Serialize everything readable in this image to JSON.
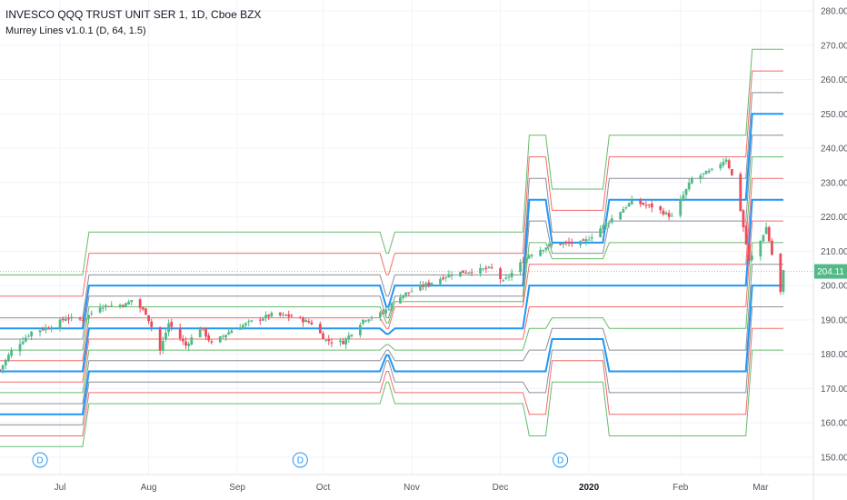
{
  "header": {
    "title": "INVESCO QQQ TRUST UNIT SER 1, 1D, Cboe BZX",
    "indicator": "Murrey Lines v1.0.1 (D, 64, 1.5)"
  },
  "colors": {
    "background": "#ffffff",
    "grid": "#f0f3fa",
    "axis_text": "#50535e",
    "candle_up": "#53b987",
    "candle_down": "#eb4d5c",
    "line_blue": "#2196f3",
    "line_red": "#ef5350",
    "line_green": "#4caf50",
    "line_gray": "#787b86",
    "price_tag": "#53b987"
  },
  "chart_data": {
    "type": "candlestick",
    "y_axis": {
      "min": 145,
      "max": 283,
      "position": "right",
      "ticks": [
        280,
        270,
        260,
        250,
        240,
        230,
        220,
        210,
        200,
        190,
        180,
        170,
        160,
        150
      ],
      "tick_labels": [
        "280.00",
        "270.00",
        "260.00",
        "250.00",
        "240.00",
        "230.00",
        "220.00",
        "210.00",
        "200.00",
        "190.00",
        "180.00",
        "170.00",
        "160.00",
        "150.00"
      ]
    },
    "x_axis": {
      "labels": [
        {
          "text": "Jul",
          "date": "2019-07-01"
        },
        {
          "text": "Aug",
          "date": "2019-08-01"
        },
        {
          "text": "Sep",
          "date": "2019-09-01"
        },
        {
          "text": "Oct",
          "date": "2019-10-01"
        },
        {
          "text": "Nov",
          "date": "2019-11-01"
        },
        {
          "text": "Dec",
          "date": "2019-12-02"
        },
        {
          "text": "2020",
          "date": "2020-01-02",
          "bold": true
        },
        {
          "text": "Feb",
          "date": "2020-02-03"
        },
        {
          "text": "Mar",
          "date": "2020-03-02"
        }
      ]
    },
    "last_price": {
      "value": 204.11,
      "label": "204.11"
    },
    "dividend_markers": [
      {
        "label": "D",
        "date": "2019-06-24"
      },
      {
        "label": "D",
        "date": "2019-09-23"
      },
      {
        "label": "D",
        "date": "2019-12-23"
      }
    ],
    "murrey_lines": {
      "periods": [
        {
          "start": "2019-06-10",
          "end": "2019-07-10",
          "levels": [
            203.1,
            196.9,
            190.6,
            187.5,
            184.4,
            181.2,
            178.1,
            175.0,
            171.9,
            168.8,
            165.6,
            162.5,
            159.4,
            156.2,
            153.1
          ]
        },
        {
          "start": "2019-07-10",
          "end": "2019-10-22",
          "levels": [
            215.6,
            209.4,
            203.1,
            200.0,
            196.9,
            193.8,
            190.6,
            187.5,
            184.4,
            181.2,
            178.1,
            175.0,
            171.9,
            168.8,
            165.6
          ]
        },
        {
          "start": "2019-10-22",
          "end": "2019-10-25",
          "levels": [
            209.4,
            203.1,
            196.9,
            193.8,
            190.6,
            189.1,
            187.5,
            185.9,
            184.4,
            182.8,
            181.2,
            179.7,
            178.1,
            175.0,
            171.9
          ]
        },
        {
          "start": "2019-10-25",
          "end": "2019-12-11",
          "levels": [
            215.6,
            209.4,
            203.1,
            200.0,
            196.9,
            195.3,
            193.8,
            187.5,
            184.4,
            181.2,
            178.1,
            175.0,
            171.9,
            168.8,
            165.6
          ]
        },
        {
          "start": "2019-12-11",
          "end": "2019-12-19",
          "levels": [
            243.8,
            237.5,
            231.2,
            225.0,
            218.8,
            212.5,
            206.2,
            200.0,
            193.8,
            187.5,
            181.2,
            175.0,
            168.8,
            162.5,
            156.2
          ]
        },
        {
          "start": "2019-12-19",
          "end": "2020-01-08",
          "levels": [
            228.1,
            221.9,
            215.6,
            212.5,
            209.4,
            207.8,
            206.2,
            200.0,
            193.8,
            190.6,
            187.5,
            184.4,
            181.2,
            178.1,
            171.9
          ]
        },
        {
          "start": "2020-01-08",
          "end": "2020-02-27",
          "levels": [
            243.8,
            237.5,
            231.2,
            225.0,
            218.8,
            212.5,
            206.2,
            200.0,
            193.8,
            187.5,
            181.2,
            175.0,
            168.8,
            162.5,
            156.2
          ]
        },
        {
          "start": "2020-02-27",
          "end": "2020-03-10",
          "levels": [
            268.8,
            262.5,
            256.2,
            250.0,
            243.8,
            237.5,
            231.2,
            225.0,
            218.8,
            212.5,
            206.2,
            200.0,
            193.8,
            187.5,
            181.2
          ]
        }
      ],
      "level_colors": [
        "green",
        "red",
        "gray",
        "blue",
        "gray",
        "green",
        "red",
        "blue",
        "red",
        "green",
        "gray",
        "blue",
        "gray",
        "red",
        "green"
      ]
    },
    "candles_anchor": [
      [
        "2019-06-10",
        175.5
      ],
      [
        "2019-06-14",
        181.0
      ],
      [
        "2019-06-21",
        186.5
      ],
      [
        "2019-06-28",
        188.0
      ],
      [
        "2019-07-03",
        190.5
      ],
      [
        "2019-07-09",
        190.0
      ],
      [
        "2019-07-15",
        194.0
      ],
      [
        "2019-07-24",
        194.5
      ],
      [
        "2019-07-26",
        195.8
      ],
      [
        "2019-07-31",
        192.0
      ],
      [
        "2019-08-02",
        188.0
      ],
      [
        "2019-08-05",
        181.0
      ],
      [
        "2019-08-08",
        189.0
      ],
      [
        "2019-08-14",
        182.5
      ],
      [
        "2019-08-19",
        188.0
      ],
      [
        "2019-08-23",
        183.0
      ],
      [
        "2019-08-30",
        187.0
      ],
      [
        "2019-09-06",
        189.5
      ],
      [
        "2019-09-13",
        191.5
      ],
      [
        "2019-09-20",
        191.0
      ],
      [
        "2019-09-27",
        189.0
      ],
      [
        "2019-10-02",
        184.0
      ],
      [
        "2019-10-08",
        183.5
      ],
      [
        "2019-10-15",
        190.0
      ],
      [
        "2019-10-22",
        192.0
      ],
      [
        "2019-10-28",
        197.0
      ],
      [
        "2019-11-04",
        199.5
      ],
      [
        "2019-11-15",
        203.5
      ],
      [
        "2019-11-29",
        205.0
      ],
      [
        "2019-12-03",
        201.0
      ],
      [
        "2019-12-12",
        209.0
      ],
      [
        "2019-12-20",
        212.0
      ],
      [
        "2019-12-31",
        212.5
      ],
      [
        "2020-01-03",
        214.5
      ],
      [
        "2020-01-10",
        219.5
      ],
      [
        "2020-01-17",
        224.5
      ],
      [
        "2020-01-24",
        223.0
      ],
      [
        "2020-01-31",
        220.0
      ],
      [
        "2020-02-07",
        231.0
      ],
      [
        "2020-02-14",
        233.5
      ],
      [
        "2020-02-19",
        237.0
      ],
      [
        "2020-02-21",
        232.0
      ],
      [
        "2020-02-24",
        222.0
      ],
      [
        "2020-02-27",
        207.0
      ],
      [
        "2020-03-02",
        213.0
      ],
      [
        "2020-03-04",
        217.0
      ],
      [
        "2020-03-06",
        209.0
      ],
      [
        "2020-03-09",
        198.0
      ],
      [
        "2020-03-10",
        204.11
      ]
    ]
  }
}
